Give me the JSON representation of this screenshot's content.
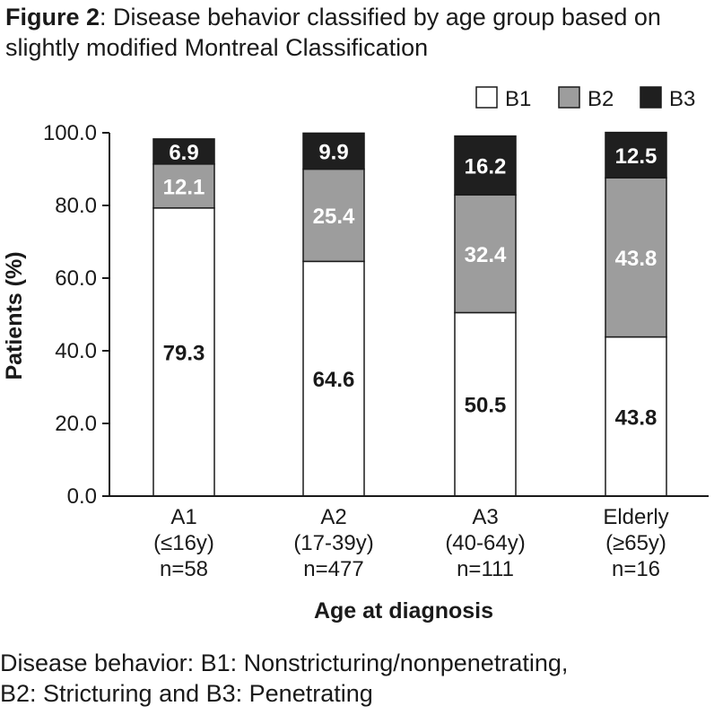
{
  "figure": {
    "title_prefix": "Figure 2",
    "title_rest": ": Disease behavior classified by age group based on slightly modified Montreal Classification",
    "footer_line1": "Disease behavior: B1: Nonstricturing/nonpenetrating,",
    "footer_line2": "B2: Stricturing and B3: Penetrating"
  },
  "chart_data": {
    "type": "bar",
    "stacked": true,
    "title": "",
    "xlabel": "Age at diagnosis",
    "ylabel": "Patients (%)",
    "ylim": [
      0,
      100
    ],
    "yticks": [
      "0.0",
      "20.0",
      "40.0",
      "60.0",
      "80.0",
      "100.0"
    ],
    "categories": [
      [
        "A1",
        "(≤16y)",
        "n=58"
      ],
      [
        "A2",
        "(17-39y)",
        "n=477"
      ],
      [
        "A3",
        "(40-64y)",
        "n=111"
      ],
      [
        "Elderly",
        "(≥65y)",
        "n=16"
      ]
    ],
    "series": [
      {
        "name": "B1",
        "color": "#ffffff",
        "label_color": "#1a1a1a",
        "values": [
          79.3,
          64.6,
          50.5,
          43.8
        ],
        "labels": [
          "79.3",
          "64.6",
          "50.5",
          "43.8"
        ]
      },
      {
        "name": "B2",
        "color": "#9d9d9d",
        "label_color": "#ffffff",
        "values": [
          12.1,
          25.4,
          32.4,
          43.8
        ],
        "labels": [
          "12.1",
          "25.4",
          "32.4",
          "43.8"
        ]
      },
      {
        "name": "B3",
        "color": "#1f1f1f",
        "label_color": "#ffffff",
        "values": [
          6.9,
          9.9,
          16.2,
          12.5
        ],
        "labels": [
          "6.9",
          "9.9",
          "16.2",
          "12.5"
        ]
      }
    ],
    "legend_position": "top-right",
    "grid": false
  }
}
